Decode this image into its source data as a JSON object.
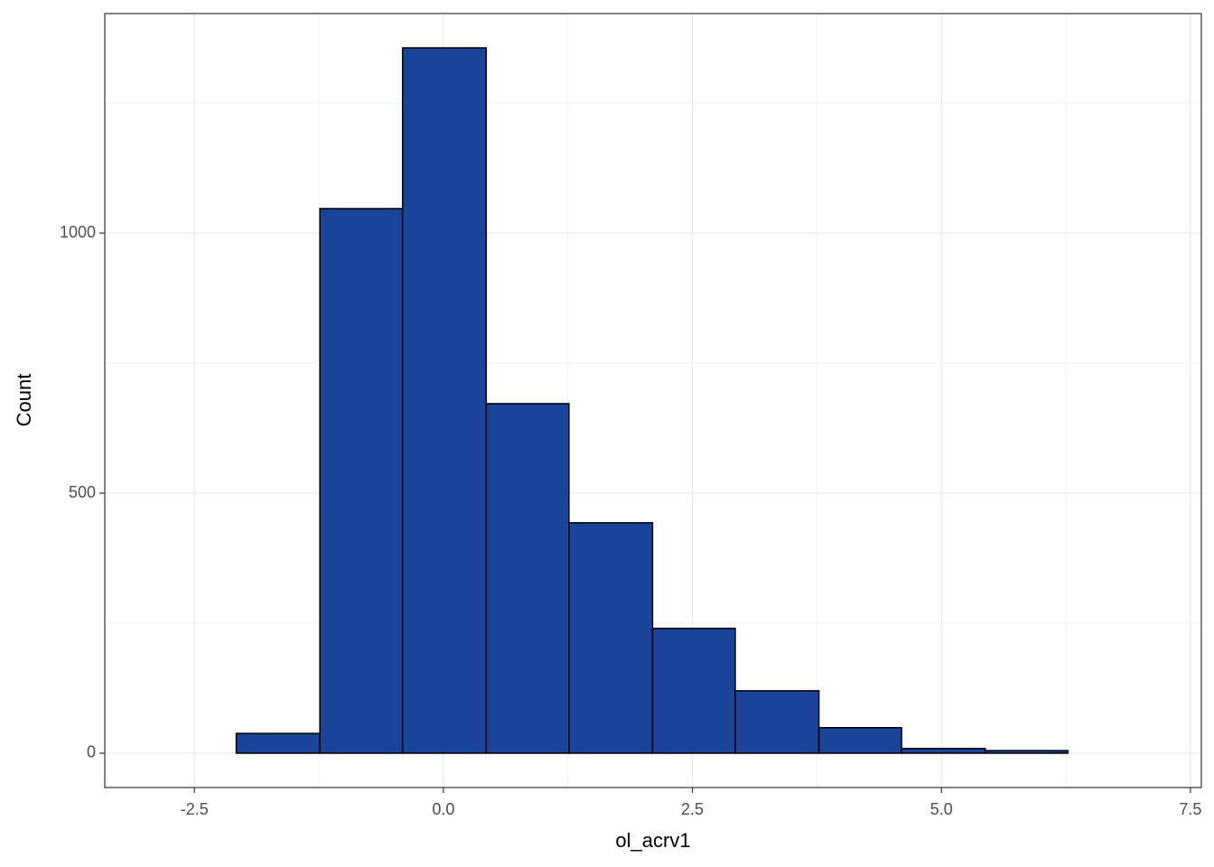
{
  "chart_data": {
    "type": "histogram",
    "x_label": "ol_acrv1",
    "y_label": "Count",
    "bins": [
      -2.91,
      -2.08,
      -1.24,
      -0.41,
      0.43,
      1.26,
      2.1,
      2.93,
      3.77,
      4.6,
      5.44,
      6.27,
      7.11
    ],
    "counts": [
      0,
      38,
      1047,
      1356,
      672,
      443,
      240,
      120,
      49,
      9,
      5,
      0
    ],
    "color": "#1a4499",
    "edge_color": "#000000",
    "xlim": [
      -3.4,
      7.61
    ],
    "ylim": [
      -66,
      1422
    ],
    "xticks": [
      -2.5,
      {
        "value": 0,
        "label": "0.0"
      },
      2.5,
      {
        "value": 5,
        "label": "5.0"
      },
      7.5
    ],
    "yticks": [
      0,
      500,
      1000
    ],
    "grid": true
  }
}
